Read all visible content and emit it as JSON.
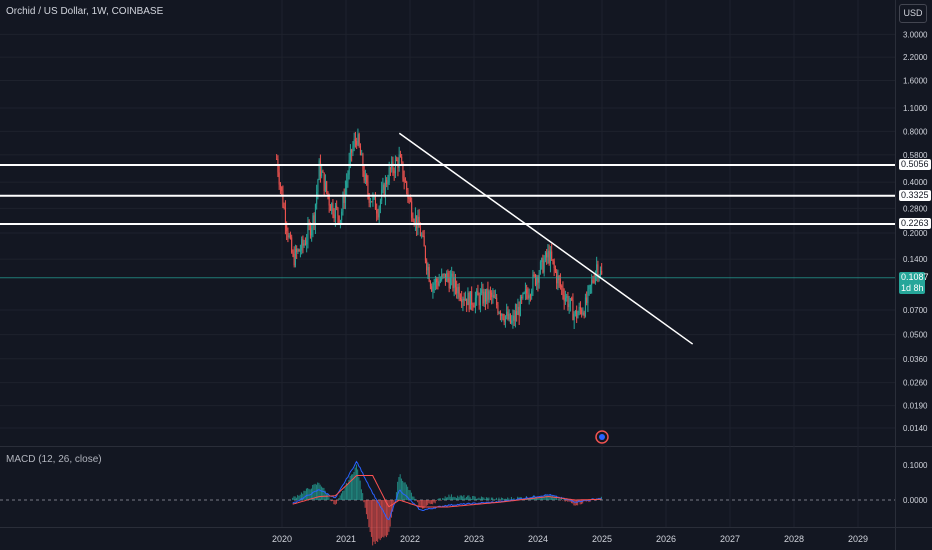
{
  "header": {
    "title": "Orchid / US Dollar, 1W, COINBASE"
  },
  "currency_button": {
    "label": "USD"
  },
  "macd": {
    "title": "MACD (12, 26, close)"
  },
  "price_tags": [
    {
      "value": "0.5056",
      "style": "white"
    },
    {
      "value": "0.3325",
      "style": "white"
    },
    {
      "value": "0.2263",
      "style": "white"
    }
  ],
  "current_price": {
    "value": "0.1087",
    "countdown": "1d 8h"
  },
  "colors": {
    "up": "#26a69a",
    "down": "#ef5350",
    "macd_line": "#2962ff",
    "signal_line": "#ff5252",
    "background": "#131722"
  },
  "chart_data": {
    "type": "candlestick",
    "scale": "log",
    "x_ticks": [
      "2020",
      "2021",
      "2022",
      "2023",
      "2024",
      "2025",
      "2026",
      "2027",
      "2028",
      "2029"
    ],
    "y_ticks": [
      "3.0000",
      "2.2000",
      "1.6000",
      "1.1000",
      "0.8000",
      "0.5800",
      "0.4000",
      "0.2800",
      "0.2000",
      "0.1400",
      "0.0700",
      "0.0500",
      "0.0360",
      "0.0260",
      "0.0190",
      "0.0140"
    ],
    "horizontal_levels": [
      0.5056,
      0.3325,
      0.2263
    ],
    "current_price": 0.1087,
    "trendline": {
      "from": {
        "x": "2021-11",
        "y": 0.78
      },
      "to": {
        "x": "2026-06",
        "y": 0.044
      }
    },
    "price_path": [
      {
        "x": "2019-12",
        "y": 0.55
      },
      {
        "x": "2020-01",
        "y": 0.33
      },
      {
        "x": "2020-03",
        "y": 0.14
      },
      {
        "x": "2020-05",
        "y": 0.17
      },
      {
        "x": "2020-07",
        "y": 0.25
      },
      {
        "x": "2020-08",
        "y": 0.5
      },
      {
        "x": "2020-10",
        "y": 0.3
      },
      {
        "x": "2020-12",
        "y": 0.25
      },
      {
        "x": "2021-02",
        "y": 0.6
      },
      {
        "x": "2021-03",
        "y": 0.75
      },
      {
        "x": "2021-05",
        "y": 0.35
      },
      {
        "x": "2021-07",
        "y": 0.28
      },
      {
        "x": "2021-09",
        "y": 0.45
      },
      {
        "x": "2021-11",
        "y": 0.55
      },
      {
        "x": "2022-01",
        "y": 0.3
      },
      {
        "x": "2022-03",
        "y": 0.2
      },
      {
        "x": "2022-05",
        "y": 0.1
      },
      {
        "x": "2022-08",
        "y": 0.11
      },
      {
        "x": "2022-12",
        "y": 0.08
      },
      {
        "x": "2023-04",
        "y": 0.085
      },
      {
        "x": "2023-08",
        "y": 0.058
      },
      {
        "x": "2023-11",
        "y": 0.09
      },
      {
        "x": "2024-03",
        "y": 0.15
      },
      {
        "x": "2024-05",
        "y": 0.1
      },
      {
        "x": "2024-08",
        "y": 0.065
      },
      {
        "x": "2024-10",
        "y": 0.075
      },
      {
        "x": "2024-12",
        "y": 0.13
      },
      {
        "x": "2025-01",
        "y": 0.109
      }
    ],
    "macd_ticks": [
      "0.1000",
      "0.0000"
    ],
    "macd_path": [
      {
        "x": "2020-03",
        "m": -0.01,
        "s": -0.012
      },
      {
        "x": "2020-08",
        "m": 0.03,
        "s": 0.01
      },
      {
        "x": "2020-11",
        "m": 0.005,
        "s": 0.012
      },
      {
        "x": "2021-03",
        "m": 0.11,
        "s": 0.07
      },
      {
        "x": "2021-06",
        "m": 0.02,
        "s": 0.07
      },
      {
        "x": "2021-09",
        "m": -0.06,
        "s": -0.02
      },
      {
        "x": "2021-11",
        "m": 0.03,
        "s": 0.0
      },
      {
        "x": "2022-03",
        "m": -0.03,
        "s": -0.02
      },
      {
        "x": "2022-08",
        "m": -0.015,
        "s": -0.02
      },
      {
        "x": "2023-06",
        "m": -0.005,
        "s": -0.006
      },
      {
        "x": "2024-03",
        "m": 0.015,
        "s": 0.01
      },
      {
        "x": "2024-08",
        "m": -0.005,
        "s": 0.0
      },
      {
        "x": "2025-01",
        "m": 0.005,
        "s": 0.002
      }
    ]
  }
}
